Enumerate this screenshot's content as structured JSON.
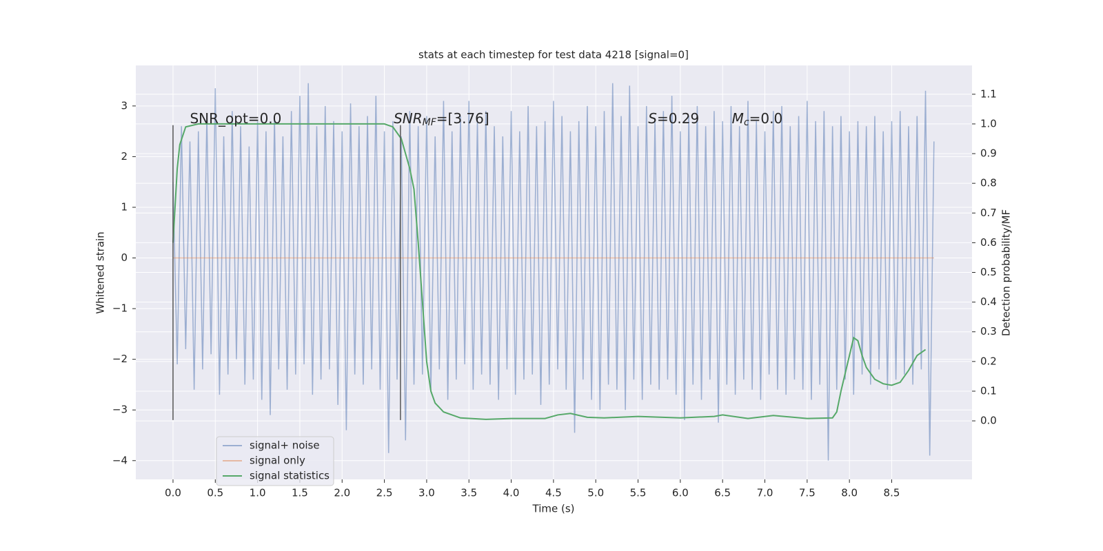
{
  "chart_data": {
    "type": "line",
    "title": "stats at each timestep for test data 4218 [signal=0]",
    "xlabel": "Time (s)",
    "ylabel": "Whitened strain",
    "y2label": "Detection probability/MF",
    "xlim": [
      -0.44,
      9.45
    ],
    "ylim": [
      -4.37,
      3.8
    ],
    "y2lim": [
      -0.197,
      1.197
    ],
    "xticks": [
      {
        "value": 0,
        "label": "0.0"
      },
      0.5,
      {
        "value": 1,
        "label": "1.0"
      },
      1.5,
      {
        "value": 2,
        "label": "2.0"
      },
      2.5,
      {
        "value": 3,
        "label": "3.0"
      },
      3.5,
      {
        "value": 4,
        "label": "4.0"
      },
      4.5,
      {
        "value": 5,
        "label": "5.0"
      },
      5.5,
      {
        "value": 6,
        "label": "6.0"
      },
      6.5,
      {
        "value": 7,
        "label": "7.0"
      },
      7.5,
      {
        "value": 8,
        "label": "8.0"
      },
      8.5
    ],
    "yticks": [
      {
        "value": -4,
        "label": "−4"
      },
      {
        "value": -3,
        "label": "−3"
      },
      {
        "value": -2,
        "label": "−2"
      },
      {
        "value": -1,
        "label": "−1"
      },
      0,
      1,
      2,
      3
    ],
    "y2ticks": [
      {
        "value": 0,
        "label": "0.0"
      },
      0.1,
      0.2,
      0.3,
      0.4,
      0.5,
      0.6,
      0.7,
      0.8,
      0.9,
      {
        "value": 1,
        "label": "1.0"
      },
      1.1
    ],
    "grid": true,
    "legend": "lower left",
    "vlines": {
      "x": [
        0,
        2.69
      ],
      "ymin": -3.2,
      "ymax": 2.62,
      "color": "#555555"
    },
    "annotations": [
      {
        "x": 0.2,
        "y": 2.74,
        "text": "SNR_opt=0.0"
      },
      {
        "x": 2.61,
        "y": 2.74,
        "var": "SNR",
        "sub": "MF",
        "rest": "=[3.76]"
      },
      {
        "x": 5.62,
        "y": 2.74,
        "var": "S",
        "rest": "=0.29"
      },
      {
        "x": 6.61,
        "y": 2.74,
        "var": "M",
        "sub": "c",
        "rest": "=0.0"
      }
    ],
    "series": [
      {
        "name": "signal+ noise",
        "color": "#4c72b0",
        "opacity": 0.5,
        "x": [
          0,
          0.05,
          0.1,
          0.15,
          0.2,
          0.25,
          0.3,
          0.35,
          0.4,
          0.45,
          0.5,
          0.55,
          0.6,
          0.65,
          0.7,
          0.75,
          0.8,
          0.85,
          0.9,
          0.95,
          1,
          1.05,
          1.1,
          1.15,
          1.2,
          1.25,
          1.3,
          1.35,
          1.4,
          1.45,
          1.5,
          1.55,
          1.6,
          1.65,
          1.7,
          1.75,
          1.8,
          1.85,
          1.9,
          1.95,
          2,
          2.05,
          2.1,
          2.15,
          2.2,
          2.25,
          2.3,
          2.35,
          2.4,
          2.45,
          2.5,
          2.55,
          2.6,
          2.65,
          2.7,
          2.75,
          2.8,
          2.85,
          2.9,
          2.95,
          3,
          3.05,
          3.1,
          3.15,
          3.2,
          3.25,
          3.3,
          3.35,
          3.4,
          3.45,
          3.5,
          3.55,
          3.6,
          3.65,
          3.7,
          3.75,
          3.8,
          3.85,
          3.9,
          3.95,
          4,
          4.05,
          4.1,
          4.15,
          4.2,
          4.25,
          4.3,
          4.35,
          4.4,
          4.45,
          4.5,
          4.55,
          4.6,
          4.65,
          4.7,
          4.75,
          4.8,
          4.85,
          4.9,
          4.95,
          5,
          5.05,
          5.1,
          5.15,
          5.2,
          5.25,
          5.3,
          5.35,
          5.4,
          5.45,
          5.5,
          5.55,
          5.6,
          5.65,
          5.7,
          5.75,
          5.8,
          5.85,
          5.9,
          5.95,
          6,
          6.05,
          6.1,
          6.15,
          6.2,
          6.25,
          6.3,
          6.35,
          6.4,
          6.45,
          6.5,
          6.55,
          6.6,
          6.65,
          6.7,
          6.75,
          6.8,
          6.85,
          6.9,
          6.95,
          7,
          7.05,
          7.1,
          7.15,
          7.2,
          7.25,
          7.3,
          7.35,
          7.4,
          7.45,
          7.5,
          7.55,
          7.6,
          7.65,
          7.7,
          7.75,
          7.8,
          7.85,
          7.9,
          7.95,
          8,
          8.05,
          8.1,
          8.15,
          8.2,
          8.25,
          8.3,
          8.35,
          8.4,
          8.45,
          8.5,
          8.55,
          8.6,
          8.65,
          8.7,
          8.75,
          8.8,
          8.85,
          8.9,
          8.95,
          9
        ],
        "values": [
          1.5,
          -2.1,
          2.6,
          -1.8,
          2.3,
          -2.6,
          2.5,
          -2.2,
          2.8,
          -1.9,
          3.35,
          -2.7,
          2.4,
          -2.3,
          2.9,
          -2.0,
          2.6,
          -2.5,
          2.2,
          -2.4,
          2.7,
          -2.8,
          2.5,
          -3.1,
          2.8,
          -2.2,
          2.4,
          -2.6,
          2.9,
          -2.3,
          3.2,
          -2.1,
          3.45,
          -2.7,
          2.6,
          -2.4,
          3.0,
          -2.2,
          2.7,
          -2.9,
          2.5,
          -3.4,
          3.05,
          -2.3,
          2.6,
          -2.5,
          2.8,
          -2.2,
          3.2,
          -2.6,
          2.5,
          -3.85,
          2.7,
          -2.4,
          2.4,
          -3.6,
          2.9,
          -2.5,
          2.6,
          -2.3,
          2.8,
          -2.6,
          2.4,
          -2.2,
          3.1,
          -2.8,
          2.5,
          -2.4,
          2.8,
          -2.1,
          3.1,
          -2.6,
          2.7,
          -2.3,
          2.9,
          -2.5,
          2.6,
          -2.8,
          2.4,
          -2.2,
          2.9,
          -2.7,
          2.5,
          -2.4,
          3.0,
          -2.3,
          2.6,
          -2.9,
          2.7,
          -2.5,
          3.1,
          -2.2,
          2.8,
          -2.6,
          2.5,
          -3.45,
          2.7,
          -2.4,
          3.0,
          -2.8,
          2.6,
          -3.0,
          2.9,
          -2.5,
          3.45,
          -2.6,
          2.8,
          -3.0,
          3.4,
          -2.4,
          2.6,
          -2.8,
          3.0,
          -2.5,
          2.7,
          -2.6,
          2.9,
          -2.4,
          3.2,
          -2.7,
          2.5,
          -3.2,
          2.8,
          -2.5,
          3.0,
          -2.8,
          2.6,
          -2.4,
          2.9,
          -3.25,
          2.7,
          -2.5,
          3.0,
          -2.7,
          2.6,
          -2.4,
          3.1,
          -2.6,
          2.7,
          -2.8,
          2.5,
          -2.3,
          2.9,
          -2.6,
          3.0,
          -2.7,
          2.6,
          -2.4,
          2.8,
          -2.6,
          3.1,
          -2.8,
          2.7,
          -2.5,
          2.9,
          -4.0,
          2.6,
          -2.6,
          2.8,
          -2.4,
          2.5,
          -2.7,
          2.7,
          -2.3,
          2.6,
          -2.5,
          2.8,
          -2.2,
          2.5,
          -2.6,
          2.7,
          -2.4,
          2.9,
          -2.3,
          2.6,
          -2.5,
          2.8,
          -2.2,
          3.3,
          -3.9,
          2.3
        ]
      },
      {
        "name": "signal only",
        "color": "#dd8452",
        "opacity": 0.5,
        "x": [
          0,
          9
        ],
        "values": [
          0,
          0
        ]
      },
      {
        "name": "signal statistics",
        "color": "#55a868",
        "axis": "y2",
        "x": [
          0,
          0.05,
          0.08,
          0.15,
          0.3,
          1,
          2,
          2.5,
          2.6,
          2.7,
          2.8,
          2.85,
          2.9,
          2.95,
          3,
          3.05,
          3.1,
          3.2,
          3.4,
          3.7,
          4,
          4.4,
          4.55,
          4.7,
          4.9,
          5.1,
          5.5,
          6,
          6.4,
          6.5,
          6.8,
          7.1,
          7.5,
          7.8,
          7.85,
          7.9,
          8,
          8.05,
          8.1,
          8.15,
          8.2,
          8.3,
          8.4,
          8.5,
          8.6,
          8.7,
          8.8,
          8.9
        ],
        "values": [
          0.6,
          0.85,
          0.93,
          0.99,
          1.0,
          1.0,
          1.0,
          1.0,
          0.99,
          0.95,
          0.85,
          0.78,
          0.6,
          0.4,
          0.2,
          0.1,
          0.06,
          0.03,
          0.01,
          0.005,
          0.008,
          0.008,
          0.02,
          0.025,
          0.012,
          0.01,
          0.015,
          0.01,
          0.015,
          0.02,
          0.008,
          0.018,
          0.008,
          0.01,
          0.03,
          0.1,
          0.22,
          0.28,
          0.27,
          0.22,
          0.18,
          0.14,
          0.125,
          0.12,
          0.13,
          0.17,
          0.22,
          0.24
        ]
      }
    ]
  }
}
